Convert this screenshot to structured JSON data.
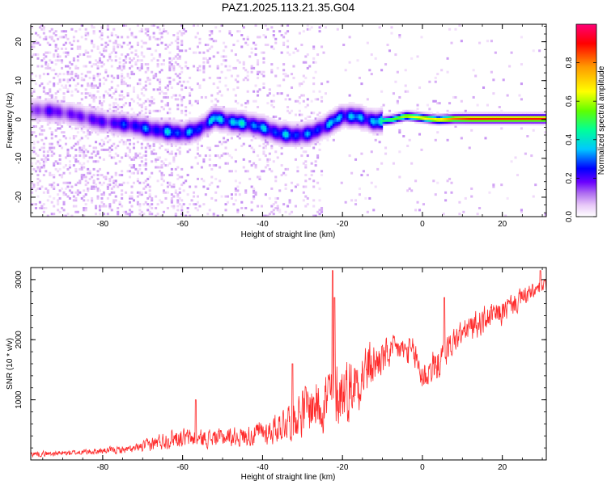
{
  "title": "PAZ1.2025.113.21.35.G04",
  "charts": [
    {
      "type": "heatmap",
      "xlabel": "Height of straight line (km)",
      "ylabel": "Frequency (Hz)",
      "xlim": [
        -98,
        31
      ],
      "ylim": [
        -25,
        24.5
      ],
      "x_ticks": [
        -80,
        -60,
        -40,
        -20,
        0,
        20
      ],
      "x_tick_labels": [
        "-80",
        "-60",
        "-40",
        "-20",
        "0",
        "20"
      ],
      "y_ticks": [
        20,
        10,
        0,
        -10,
        -20
      ],
      "y_tick_labels": [
        "20",
        "10",
        "0",
        "-10",
        "-20"
      ],
      "colorbar": {
        "label": "Normalized spectral amplitude",
        "range": [
          0,
          1
        ],
        "ticks": [
          0.0,
          0.2,
          0.4,
          0.6,
          0.8
        ],
        "tick_labels": [
          "0.0",
          "0.2",
          "0.4",
          "0.6",
          "0.8"
        ],
        "colors": [
          "#ffffff",
          "#e8c8f8",
          "#b070f0",
          "#6a00ff",
          "#0000ff",
          "#00c8ff",
          "#00ff99",
          "#60ff00",
          "#ffff00",
          "#ff9900",
          "#ff0000",
          "#ff0077"
        ]
      },
      "ridge": {
        "x": [
          -97,
          -92,
          -88,
          -84,
          -80,
          -76,
          -72,
          -68,
          -64,
          -60,
          -56,
          -52,
          -48,
          -44,
          -40,
          -36,
          -32,
          -28,
          -24,
          -20,
          -16,
          -12,
          -8,
          -4,
          0,
          4,
          8,
          12,
          16,
          20,
          24,
          28,
          31
        ],
        "y": [
          2.5,
          2.2,
          1.5,
          0.5,
          -0.5,
          -1.0,
          -1.5,
          -2.5,
          -3.0,
          -3.5,
          -2.5,
          0.5,
          -0.5,
          -1.0,
          -2.0,
          -3.5,
          -4.0,
          -3.5,
          -1.5,
          1.0,
          0.8,
          -0.5,
          0.0,
          1.0,
          0.5,
          0.0,
          0.3,
          0.3,
          0.3,
          0.3,
          0.3,
          0.3,
          0.3
        ],
        "amplitude": [
          0.3,
          0.35,
          0.3,
          0.35,
          0.35,
          0.4,
          0.45,
          0.45,
          0.5,
          0.5,
          0.45,
          0.55,
          0.55,
          0.55,
          0.5,
          0.5,
          0.5,
          0.45,
          0.5,
          0.55,
          0.5,
          0.55,
          0.6,
          0.7,
          0.75,
          0.75,
          0.85,
          0.9,
          0.9,
          0.9,
          0.9,
          0.9,
          0.9
        ]
      }
    },
    {
      "type": "line",
      "xlabel": "Height of straight line (km)",
      "ylabel": "SNR (10 * v/v)",
      "xlim": [
        -98,
        31
      ],
      "ylim": [
        0,
        3200
      ],
      "x_ticks": [
        -80,
        -60,
        -40,
        -20,
        0,
        20
      ],
      "x_tick_labels": [
        "-80",
        "-60",
        "-40",
        "-20",
        "0",
        "20"
      ],
      "y_ticks": [
        1000,
        2000,
        3000
      ],
      "y_tick_labels": [
        "1000",
        "2000",
        "3000"
      ],
      "color": "#ff2a2a",
      "envelope": {
        "x": [
          -98,
          -90,
          -80,
          -72,
          -68,
          -62,
          -56,
          -50,
          -44,
          -38,
          -34,
          -30,
          -26,
          -22,
          -18,
          -14,
          -10,
          -6,
          -2,
          0,
          4,
          8,
          12,
          16,
          20,
          24,
          28,
          31
        ],
        "mean": [
          100,
          110,
          150,
          180,
          260,
          380,
          350,
          380,
          400,
          480,
          650,
          820,
          950,
          1100,
          1200,
          1500,
          1700,
          1850,
          1750,
          1400,
          1600,
          2000,
          2200,
          2350,
          2450,
          2650,
          2800,
          2900
        ],
        "spread": [
          60,
          60,
          70,
          90,
          160,
          220,
          200,
          200,
          230,
          300,
          420,
          550,
          650,
          800,
          700,
          600,
          400,
          300,
          350,
          400,
          350,
          300,
          300,
          300,
          280,
          250,
          200,
          150
        ]
      },
      "peaks": [
        {
          "x": -22.5,
          "y": 3150
        },
        {
          "x": -22.0,
          "y": 2700
        },
        {
          "x": -32.5,
          "y": 1600
        },
        {
          "x": -56.7,
          "y": 1000
        },
        {
          "x": 5.5,
          "y": 2700
        },
        {
          "x": 29.5,
          "y": 3150
        }
      ]
    }
  ]
}
